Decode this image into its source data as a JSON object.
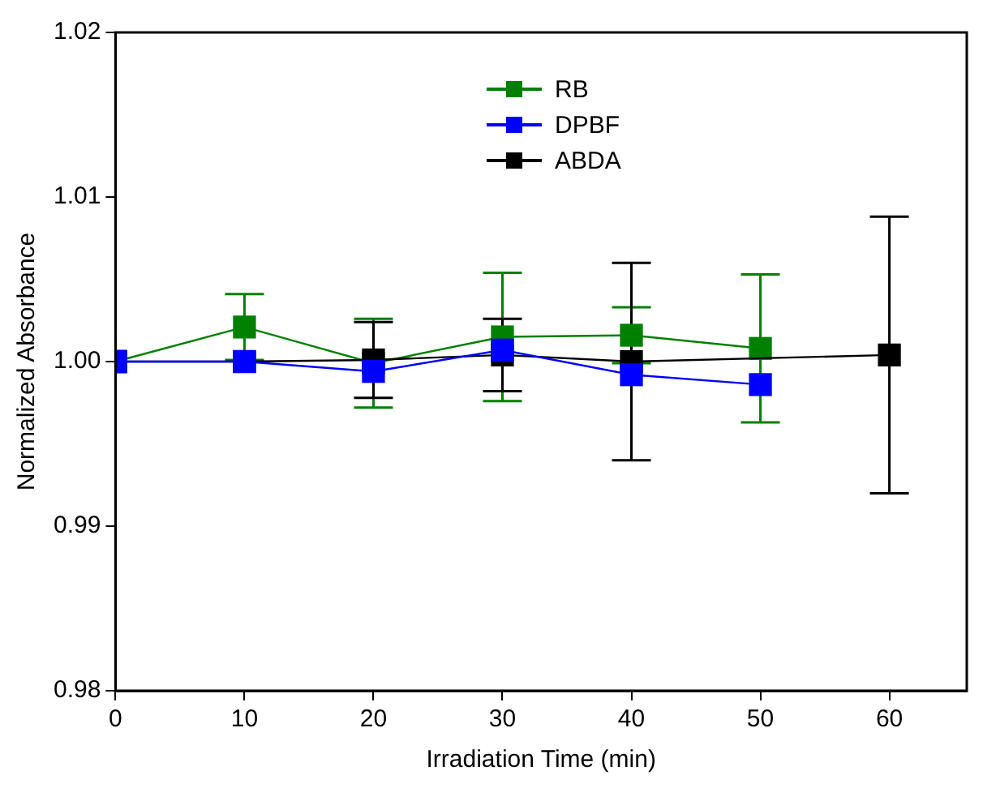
{
  "chart_data": {
    "type": "line",
    "xlabel": "Irradiation Time (min)",
    "ylabel": "Normalized Absorbance",
    "xlim": [
      0,
      66
    ],
    "xticks": [
      0,
      10,
      20,
      30,
      40,
      50,
      60
    ],
    "ylim": [
      0.98,
      1.02
    ],
    "yticks": [
      0.98,
      0.99,
      {
        "value": 1.0,
        "label": "1.00"
      },
      1.01,
      1.02
    ],
    "grid": false,
    "legend": "top",
    "marker": "square",
    "line_style": "solid",
    "series": [
      {
        "name": "RB",
        "color": "#008000",
        "x": [
          0,
          10,
          20,
          30,
          40,
          50
        ],
        "values": [
          1.0,
          1.0021,
          0.9999,
          1.0015,
          1.0016,
          1.0008
        ],
        "errors": [
          null,
          0.002,
          0.0027,
          0.0039,
          0.0017,
          0.0045
        ]
      },
      {
        "name": "DPBF",
        "color": "#0000ff",
        "x": [
          0,
          10,
          20,
          30,
          40,
          50
        ],
        "values": [
          1.0,
          1.0,
          0.9994,
          1.0007,
          0.9992,
          0.9986
        ]
      },
      {
        "name": "ABDA",
        "color": "#000000",
        "x": [
          0,
          10,
          20,
          30,
          40,
          60
        ],
        "values": [
          1.0,
          1.0,
          1.0001,
          1.0004,
          1.0,
          1.0004
        ],
        "errors": [
          null,
          null,
          0.0023,
          0.0022,
          0.006,
          0.0084
        ]
      }
    ]
  }
}
